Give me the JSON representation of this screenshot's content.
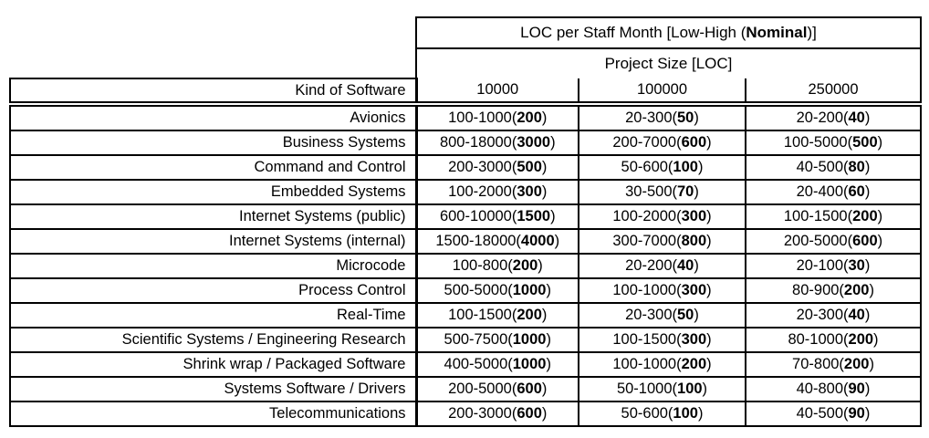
{
  "table": {
    "title": "LOC per Staff Month [Low-High (Nominal)]",
    "subtitle": "Project Size [LOC]",
    "row_header": "Kind of Software",
    "columns": [
      "10000",
      "100000",
      "250000"
    ],
    "rows": [
      {
        "label": "Avionics",
        "cells": [
          "100-1000(200)",
          "20-300(50)",
          "20-200(40)"
        ]
      },
      {
        "label": "Business Systems",
        "cells": [
          "800-18000(3000)",
          "200-7000(600)",
          "100-5000(500)"
        ]
      },
      {
        "label": "Command and Control",
        "cells": [
          "200-3000(500)",
          "50-600(100)",
          "40-500(80)"
        ]
      },
      {
        "label": "Embedded Systems",
        "cells": [
          "100-2000(300)",
          "30-500(70)",
          "20-400(60)"
        ]
      },
      {
        "label": "Internet Systems (public)",
        "cells": [
          "600-10000(1500)",
          "100-2000(300)",
          "100-1500(200)"
        ]
      },
      {
        "label": "Internet Systems (internal)",
        "cells": [
          "1500-18000(4000)",
          "300-7000(800)",
          "200-5000(600)"
        ]
      },
      {
        "label": "Microcode",
        "cells": [
          "100-800(200)",
          "20-200(40)",
          "20-100(30)"
        ]
      },
      {
        "label": "Process Control",
        "cells": [
          "500-5000(1000)",
          "100-1000(300)",
          "80-900(200)"
        ]
      },
      {
        "label": "Real-Time",
        "cells": [
          "100-1500(200)",
          "20-300(50)",
          "20-300(40)"
        ]
      },
      {
        "label": "Scientific Systems / Engineering Research",
        "cells": [
          "500-7500(1000)",
          "100-1500(300)",
          "80-1000(200)"
        ]
      },
      {
        "label": "Shrink wrap / Packaged Software",
        "cells": [
          "400-5000(1000)",
          "100-1000(200)",
          "70-800(200)"
        ]
      },
      {
        "label": "Systems Software / Drivers",
        "cells": [
          "200-5000(600)",
          "50-1000(100)",
          "40-800(90)"
        ]
      },
      {
        "label": "Telecommunications",
        "cells": [
          "200-3000(600)",
          "50-600(100)",
          "40-500(90)"
        ]
      }
    ],
    "colors": {
      "border": "#000000",
      "text": "#000000",
      "background": "#ffffff"
    }
  }
}
